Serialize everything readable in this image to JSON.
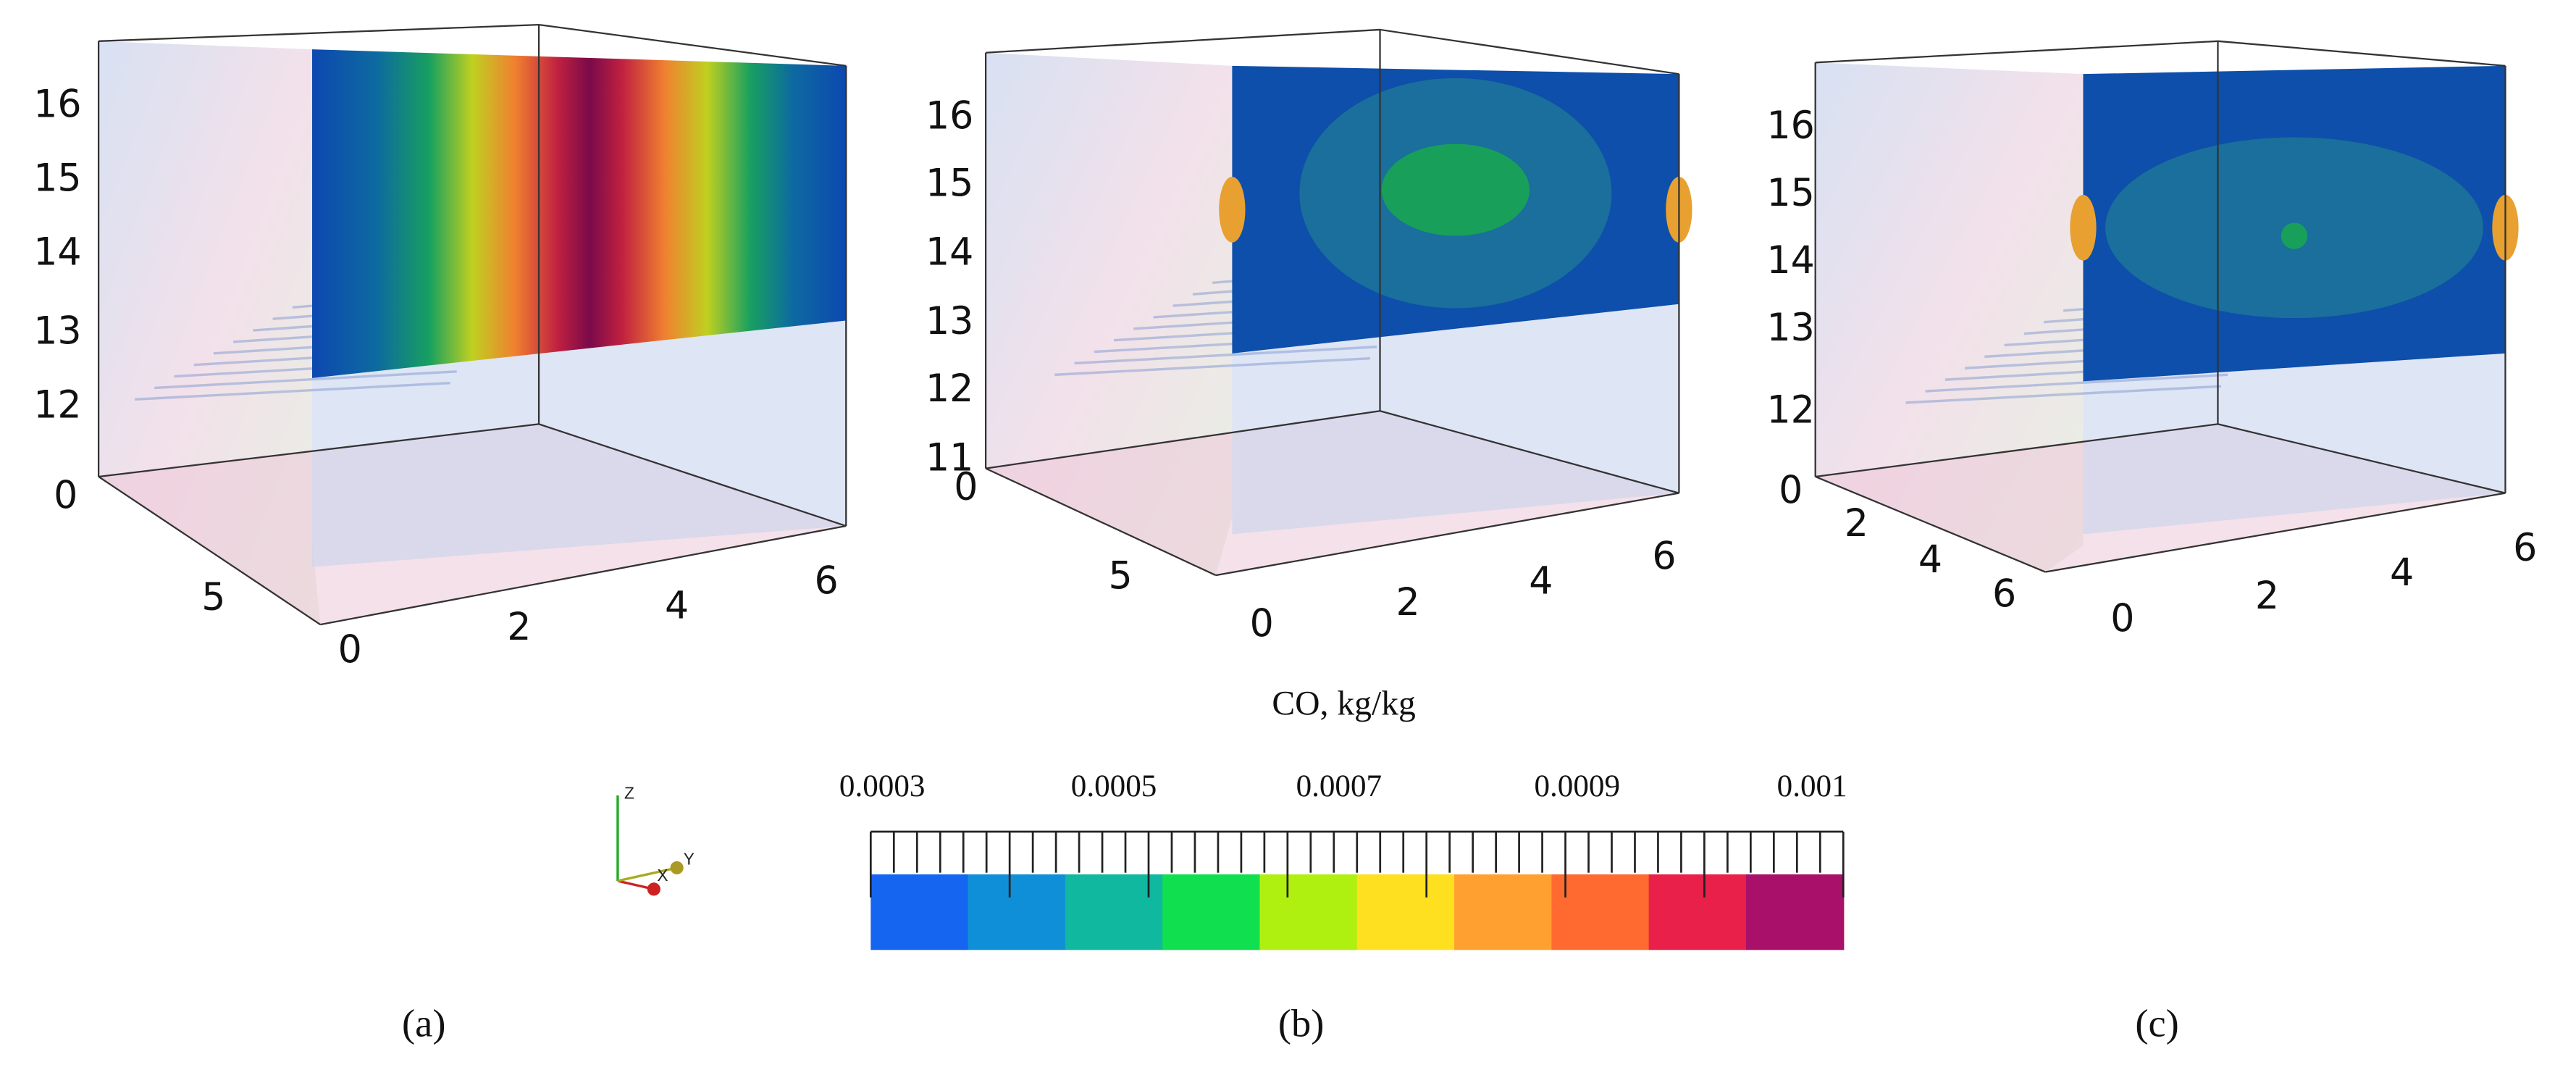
{
  "panels": [
    {
      "label": "(a)",
      "z_ticks": [
        "12",
        "13",
        "14",
        "15",
        "16"
      ],
      "y_ticks": [
        "0",
        "5"
      ],
      "x_ticks": [
        "0",
        "2",
        "4",
        "6"
      ]
    },
    {
      "label": "(b)",
      "z_ticks": [
        "11",
        "12",
        "13",
        "14",
        "15",
        "16"
      ],
      "y_ticks": [
        "0",
        "5"
      ],
      "x_ticks": [
        "0",
        "2",
        "4",
        "6"
      ]
    },
    {
      "label": "(c)",
      "z_ticks": [
        "12",
        "13",
        "14",
        "15",
        "16"
      ],
      "y_ticks": [
        "0",
        "2",
        "4",
        "6"
      ],
      "x_ticks": [
        "0",
        "2",
        "4",
        "6"
      ]
    }
  ],
  "colorbar": {
    "title": "CO, kg/kg",
    "tick_labels": [
      "0.0003",
      "0.0005",
      "0.0007",
      "0.0009",
      "0.001"
    ],
    "colors": [
      "#1565f0",
      "#0f8fd8",
      "#10b8a0",
      "#10e050",
      "#b0f010",
      "#ffe020",
      "#ffa030",
      "#ff6a30",
      "#e8204a",
      "#a8106a"
    ]
  },
  "axes_triad": {
    "labels": [
      "Z",
      "X",
      "Y"
    ]
  }
}
